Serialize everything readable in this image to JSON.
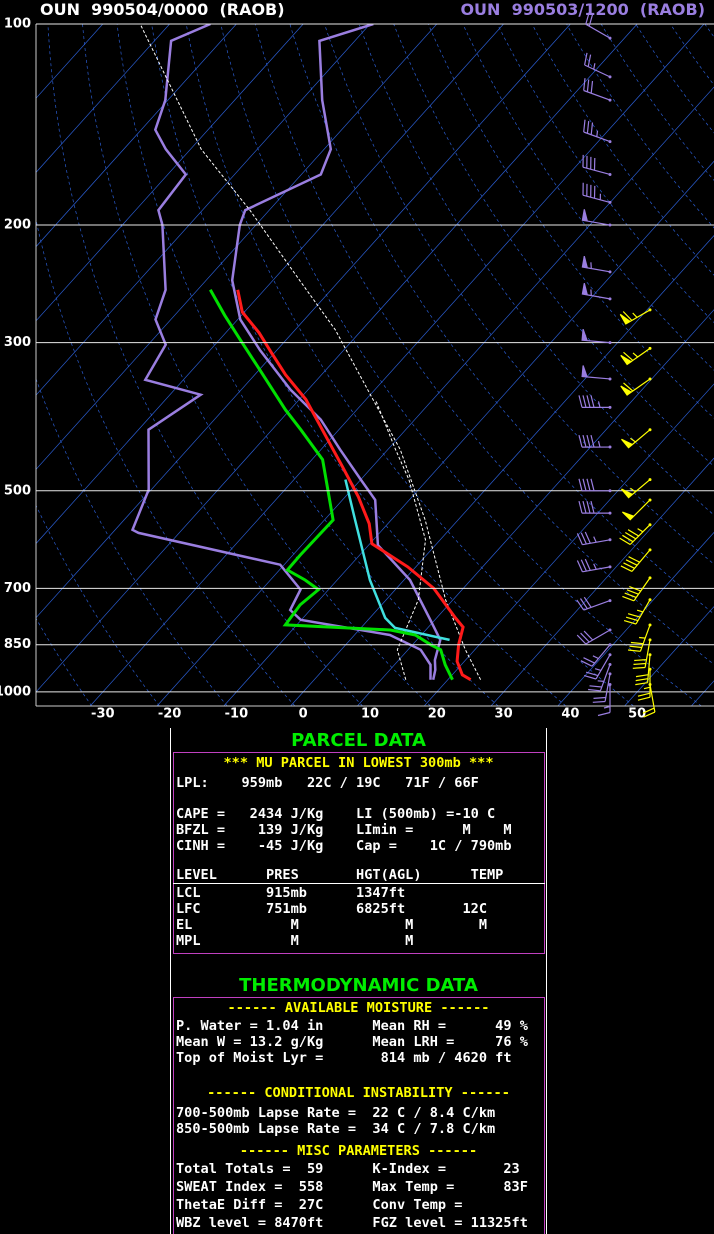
{
  "header": {
    "left": "OUN  990504/0000  (RAOB)",
    "right": "OUN  990503/1200  (RAOB)"
  },
  "chart_data": {
    "type": "skewt",
    "xlim": [
      -40,
      61.5
    ],
    "xticks": [
      -30,
      -20,
      -10,
      0,
      10,
      20,
      30,
      40,
      50
    ],
    "ylim": [
      100,
      1050
    ],
    "yticks": [
      100,
      200,
      300,
      500,
      700,
      850,
      1000
    ],
    "log_y": true,
    "grid": true,
    "series": [
      {
        "color": "#9a7ee0",
        "dash": false,
        "pressure": [
          959,
          911,
          865,
          822,
          780,
          754,
          703,
          645,
          578,
          572,
          498,
          405,
          359,
          341,
          302,
          277,
          250,
          200,
          190,
          168,
          154,
          144,
          130,
          106,
          100
        ],
        "values": [
          17.4,
          15.4,
          11.9,
          5.3,
          -10.1,
          -13,
          -14.2,
          -20.6,
          -46.1,
          -47.4,
          -50.4,
          -58.5,
          -55.4,
          -65.7,
          -67.4,
          -72.3,
          -74.8,
          -84,
          -86.6,
          -87.3,
          -93.7,
          -97.9,
          -100.4,
          -107.5,
          -103.9
        ]
      },
      {
        "color": "#9a7ee0",
        "dash": false,
        "pressure": [
          959,
          927,
          896,
          836,
          780,
          680,
          603,
          516,
          481,
          434,
          391,
          353,
          308,
          277,
          242,
          200,
          190,
          168,
          154,
          130,
          106,
          100
        ],
        "values": [
          17.8,
          16.8,
          15.4,
          13.5,
          9.3,
          0.9,
          -8.6,
          -15.1,
          -20,
          -27.1,
          -34.1,
          -42.6,
          -52.5,
          -59.6,
          -66.1,
          -72.4,
          -73.6,
          -67.1,
          -69,
          -76.9,
          -85.3,
          -79.5
        ]
      },
      {
        "color": "#ffffff",
        "dash": true,
        "pressure": [
          959,
          865,
          728,
          553,
          434,
          359,
          287,
          242,
          190,
          154,
          100
        ],
        "values": [
          24.9,
          18.6,
          8.9,
          -4.9,
          -18.1,
          -30,
          -44,
          -56,
          -72.9,
          -88.4,
          -114.4
        ]
      },
      {
        "color": "#ffffff",
        "dash": true,
        "pressure": [
          959,
          865,
          728,
          592,
          481,
          434,
          365
        ],
        "values": [
          13.7,
          8.4,
          4.8,
          -2.2,
          -12.8,
          -18.8,
          -28.6
        ]
      },
      {
        "color": "#40e0e0",
        "dash": false,
        "pressure": [
          836,
          802,
          775,
          680,
          553,
          481
        ],
        "values": [
          14.9,
          5.1,
          2.3,
          -5.1,
          -15.4,
          -22.3
        ]
      },
      {
        "color": "#00e000",
        "dash": false,
        "pressure": [
          959,
          911,
          865,
          850,
          822,
          808,
          794,
          741,
          703,
          680,
          657,
          624,
          553,
          449,
          405,
          378,
          330,
          297,
          273,
          250
        ],
        "values": [
          20.7,
          17.6,
          14.9,
          12.7,
          9.1,
          4.7,
          -11.7,
          -12.2,
          -11.5,
          -14.8,
          -18.8,
          -18.9,
          -18.7,
          -28.4,
          -35.7,
          -40.7,
          -49.8,
          -56.9,
          -62.5,
          -68.1
        ]
      },
      {
        "color": "#ff1a1a",
        "dash": false,
        "pressure": [
          959,
          943,
          900,
          850,
          800,
          775,
          700,
          650,
          600,
          560,
          510,
          460,
          420,
          365,
          335,
          310,
          290,
          270,
          250
        ],
        "values": [
          23.4,
          21.5,
          18.9,
          16.9,
          15.2,
          12.8,
          5.6,
          -1.2,
          -9.7,
          -12.8,
          -18.1,
          -24.5,
          -30.2,
          -39,
          -45.4,
          -50.6,
          -55,
          -60.3,
          -64
        ]
      }
    ],
    "winds": [
      {
        "color": "#9a7ee0",
        "pressure": [
          975,
          940,
          910,
          880,
          850,
          808,
          730,
          650,
          592,
          540,
          500,
          430,
          375,
          340,
          300,
          258,
          235,
          200,
          185,
          168,
          150,
          130,
          120,
          105
        ],
        "direction": [
          180,
          190,
          200,
          210,
          220,
          240,
          250,
          260,
          260,
          270,
          270,
          270,
          270,
          275,
          275,
          280,
          280,
          280,
          285,
          285,
          290,
          290,
          295,
          300
        ],
        "speed": [
          15,
          20,
          25,
          25,
          25,
          30,
          30,
          35,
          35,
          40,
          40,
          45,
          45,
          50,
          50,
          55,
          55,
          50,
          45,
          40,
          35,
          30,
          25,
          20
        ]
      },
      {
        "color": "#ffff00",
        "pressure": [
          975,
          925,
          880,
          836,
          794,
          728,
          675,
          613,
          562,
          516,
          481,
          405,
          340,
          306,
          268
        ],
        "direction": [
          170,
          180,
          185,
          190,
          200,
          210,
          215,
          220,
          225,
          225,
          230,
          230,
          235,
          235,
          240
        ],
        "speed": [
          20,
          25,
          30,
          30,
          35,
          35,
          40,
          40,
          45,
          50,
          55,
          55,
          60,
          65,
          65
        ]
      }
    ]
  },
  "parcel_panel": {
    "title": "PARCEL DATA",
    "heading": "*** MU PARCEL IN LOWEST 300mb ***",
    "lines": [
      "LPL:    959mb   22C / 19C   71F / 66F",
      "CAPE =   2434 J/Kg    LI (500mb) =-10 C",
      "BFZL =    139 J/Kg    LImin =      M    M",
      "CINH =    -45 J/Kg    Cap =    1C / 790mb",
      "LEVEL      PRES       HGT(AGL)      TEMP",
      "LCL        915mb      1347ft",
      "LFC        751mb      6825ft       12C",
      "EL            M             M        M",
      "MPL           M             M"
    ]
  },
  "thermo_panel": {
    "title": "THERMODYNAMIC DATA",
    "sections": [
      {
        "heading": "------ AVAILABLE MOISTURE ------",
        "lines": [
          "P. Water = 1.04 in      Mean RH =      49 %",
          "Mean W = 13.2 g/Kg      Mean LRH =     76 %",
          "Top of Moist Lyr =       814 mb / 4620 ft"
        ]
      },
      {
        "heading": "------ CONDITIONAL INSTABILITY ------",
        "lines": [
          "700-500mb Lapse Rate =  22 C / 8.4 C/km",
          "850-500mb Lapse Rate =  34 C / 7.8 C/km"
        ]
      },
      {
        "heading": "------ MISC PARAMETERS ------",
        "lines": [
          "Total Totals =  59      K-Index =       23",
          "SWEAT Index =  558      Max Temp =      83F",
          "ThetaE Diff =  27C      Conv Temp =",
          "WBZ level = 8470ft      FGZ level = 11325ft"
        ]
      }
    ]
  }
}
